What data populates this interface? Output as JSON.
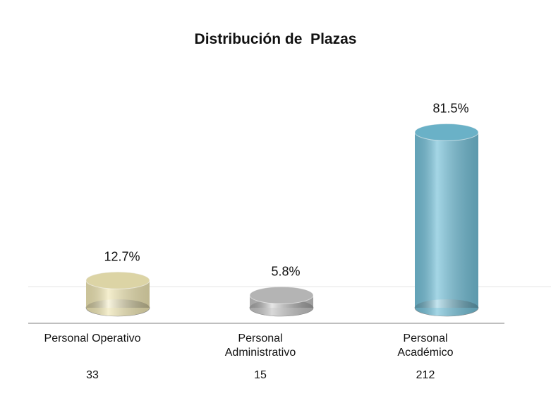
{
  "chart_data": {
    "type": "bar3d",
    "title": "Distribución de  Plazas",
    "categories": [
      "Personal Operativo",
      "Personal\nAdministrativo",
      "Personal\nAcadémico"
    ],
    "values": [
      12.7,
      5.8,
      81.5
    ],
    "value_labels": [
      "12.7%",
      "5.8%",
      "81.5%"
    ],
    "counts": [
      33,
      15,
      212
    ],
    "colors": [
      "#efe6b4",
      "#c4c4c4",
      "#74c0d8"
    ]
  }
}
